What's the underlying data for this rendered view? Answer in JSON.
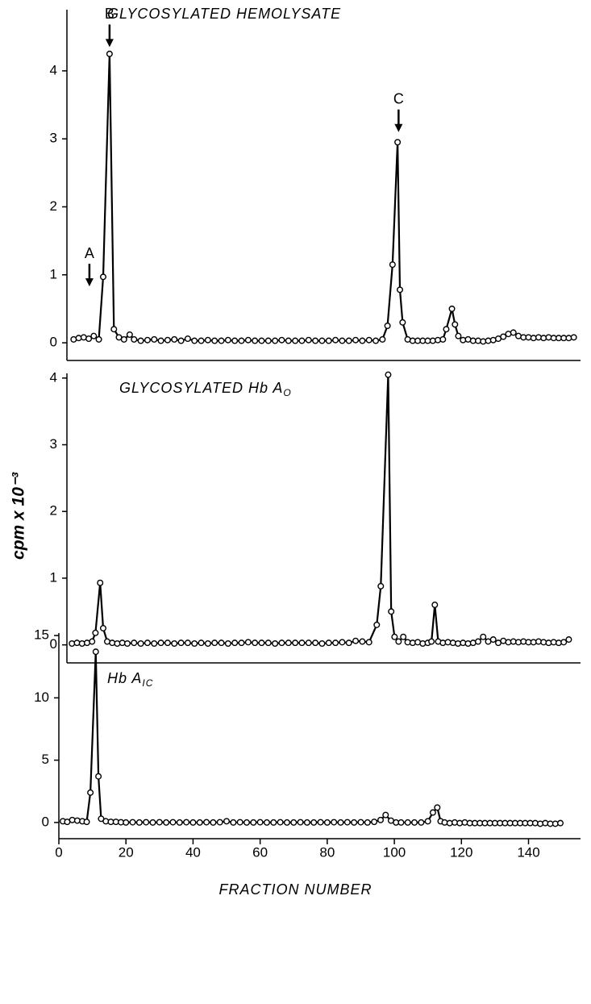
{
  "chart_data": [
    {
      "type": "line",
      "title": "GLYCOSYLATED HEMOLYSATE",
      "xlim": [
        0,
        153
      ],
      "ylim": [
        -0.26,
        4.9
      ],
      "yticks": [
        0,
        1,
        2,
        3,
        4
      ],
      "grid": false,
      "color": "#000000",
      "x": [
        2,
        3.5,
        5,
        6.5,
        8,
        9.5,
        10.8,
        12.7,
        14,
        15.5,
        17,
        18.7,
        20,
        22,
        24,
        26,
        28,
        30,
        32,
        34,
        36,
        38,
        40,
        42,
        44,
        46,
        48,
        50,
        52,
        54,
        56,
        58,
        60,
        62,
        64,
        66,
        68,
        70,
        72,
        74,
        76,
        78,
        80,
        82,
        84,
        86,
        88,
        90,
        92,
        94,
        95.5,
        97,
        98.5,
        99.2,
        100,
        101.5,
        103,
        104.5,
        106,
        107.5,
        109,
        110.5,
        112,
        113,
        114.7,
        115.6,
        116.6,
        118,
        119.5,
        121,
        122.5,
        124,
        125.5,
        127,
        128.5,
        130,
        131.5,
        133,
        134.5,
        136,
        137.5,
        139,
        140.5,
        142,
        143.5,
        145,
        146.5,
        148,
        149.5,
        151
      ],
      "values": [
        0.05,
        0.07,
        0.08,
        0.06,
        0.1,
        0.05,
        0.97,
        4.25,
        0.2,
        0.08,
        0.05,
        0.12,
        0.05,
        0.03,
        0.04,
        0.05,
        0.03,
        0.04,
        0.05,
        0.03,
        0.06,
        0.03,
        0.03,
        0.04,
        0.03,
        0.03,
        0.04,
        0.03,
        0.03,
        0.04,
        0.03,
        0.03,
        0.03,
        0.03,
        0.04,
        0.03,
        0.03,
        0.03,
        0.04,
        0.03,
        0.03,
        0.03,
        0.04,
        0.03,
        0.03,
        0.04,
        0.03,
        0.04,
        0.03,
        0.05,
        0.25,
        1.15,
        2.95,
        0.78,
        0.3,
        0.05,
        0.03,
        0.03,
        0.03,
        0.03,
        0.03,
        0.04,
        0.05,
        0.2,
        0.5,
        0.27,
        0.1,
        0.04,
        0.05,
        0.03,
        0.03,
        0.02,
        0.03,
        0.04,
        0.06,
        0.09,
        0.13,
        0.15,
        0.1,
        0.08,
        0.08,
        0.07,
        0.08,
        0.07,
        0.08,
        0.07,
        0.07,
        0.07,
        0.07,
        0.08
      ],
      "annotations": [
        {
          "text": "A",
          "x": 6.7,
          "y": 0.83
        },
        {
          "text": "B",
          "x": 12.7,
          "y": 4.35
        },
        {
          "text": "C",
          "x": 98.8,
          "y": 3.1
        }
      ]
    },
    {
      "type": "line",
      "title": "GLYCOSYLATED Hb A",
      "title_subscript": "O",
      "ylabel": "cpm x 10⁻³",
      "xlim": [
        0,
        153
      ],
      "ylim": [
        -0.27,
        4.07
      ],
      "yticks": [
        0,
        1,
        2,
        3,
        4
      ],
      "grid": false,
      "color": "#000000",
      "x": [
        1.5,
        3,
        4.5,
        6,
        7.5,
        8.5,
        9.9,
        10.8,
        12,
        13.5,
        15,
        16.5,
        18,
        20,
        22,
        24,
        26,
        28,
        30,
        32,
        34,
        36,
        38,
        40,
        42,
        44,
        46,
        48,
        50,
        52,
        54,
        56,
        58,
        60,
        62,
        64,
        66,
        68,
        70,
        72,
        74,
        76,
        78,
        80,
        82,
        84,
        86,
        88,
        90,
        92.3,
        93.5,
        95.7,
        96.6,
        97.6,
        98.8,
        100.2,
        101.5,
        103,
        104.5,
        106,
        107.5,
        108.6,
        109.6,
        110.6,
        112,
        113.5,
        115,
        116.5,
        118,
        119.5,
        121,
        122.5,
        124,
        125.5,
        127,
        128.5,
        130,
        131.5,
        133,
        134.5,
        136,
        137.5,
        139,
        140.5,
        142,
        143.5,
        145,
        146.5,
        148,
        149.5
      ],
      "values": [
        0.02,
        0.03,
        0.02,
        0.03,
        0.05,
        0.18,
        0.93,
        0.25,
        0.05,
        0.03,
        0.02,
        0.03,
        0.02,
        0.03,
        0.02,
        0.03,
        0.02,
        0.03,
        0.03,
        0.02,
        0.03,
        0.03,
        0.02,
        0.03,
        0.02,
        0.03,
        0.03,
        0.02,
        0.03,
        0.03,
        0.04,
        0.03,
        0.03,
        0.03,
        0.02,
        0.03,
        0.03,
        0.03,
        0.03,
        0.03,
        0.03,
        0.02,
        0.03,
        0.03,
        0.04,
        0.03,
        0.06,
        0.05,
        0.04,
        0.3,
        0.88,
        4.05,
        0.5,
        0.12,
        0.05,
        0.12,
        0.04,
        0.03,
        0.04,
        0.02,
        0.03,
        0.05,
        0.6,
        0.05,
        0.03,
        0.04,
        0.03,
        0.02,
        0.03,
        0.02,
        0.03,
        0.05,
        0.12,
        0.05,
        0.08,
        0.03,
        0.06,
        0.04,
        0.05,
        0.04,
        0.05,
        0.04,
        0.04,
        0.05,
        0.04,
        0.03,
        0.04,
        0.03,
        0.04,
        0.08
      ]
    },
    {
      "type": "line",
      "title": "Hb A",
      "title_subscript": "IC",
      "xlabel": "FRACTION NUMBER",
      "xlim": [
        0,
        155.5
      ],
      "ylim": [
        -1.3,
        15.2
      ],
      "yticks": [
        0,
        5,
        10,
        15
      ],
      "xticks": [
        0,
        20,
        40,
        60,
        80,
        100,
        120,
        140
      ],
      "grid": false,
      "color": "#000000",
      "x": [
        1.2,
        2.5,
        4,
        5.5,
        7,
        8.3,
        9.4,
        11,
        11.8,
        12.6,
        14,
        15.5,
        17,
        18.5,
        20,
        22,
        24,
        26,
        28,
        30,
        32,
        34,
        36,
        38,
        40,
        42,
        44,
        46,
        48,
        50,
        52,
        54,
        56,
        58,
        60,
        62,
        64,
        66,
        68,
        70,
        72,
        74,
        76,
        78,
        80,
        82,
        84,
        86,
        88,
        90,
        92,
        94,
        95.9,
        97.4,
        99,
        100.5,
        102,
        104,
        106,
        108,
        110,
        111.5,
        112.8,
        113.8,
        115,
        116.5,
        118,
        119.5,
        121,
        122.5,
        124,
        125.5,
        127,
        128.5,
        130,
        131.5,
        133,
        134.5,
        136,
        137.5,
        139,
        140.5,
        142,
        143.5,
        145,
        146.5,
        148,
        149.5
      ],
      "values": [
        0.1,
        0.05,
        0.2,
        0.15,
        0.1,
        0.05,
        2.4,
        13.7,
        3.7,
        0.3,
        0.1,
        0.05,
        0.05,
        0.02,
        0,
        0.02,
        0,
        0.02,
        0,
        0.02,
        0,
        0.02,
        0,
        0.02,
        0,
        0,
        0.02,
        0,
        0.02,
        0.1,
        0,
        0.02,
        0,
        0,
        0.02,
        0,
        0,
        0.02,
        0,
        0,
        0.02,
        0,
        0,
        0.02,
        0,
        0.02,
        0,
        0.02,
        0,
        0.02,
        0,
        0.05,
        0.2,
        0.6,
        0.15,
        0,
        0,
        0,
        0,
        0,
        0.1,
        0.8,
        1.2,
        0.1,
        0,
        -0.05,
        0,
        -0.05,
        0,
        -0.05,
        -0.05,
        -0.05,
        -0.05,
        -0.05,
        -0.05,
        -0.05,
        -0.05,
        -0.05,
        -0.05,
        -0.05,
        -0.05,
        -0.05,
        -0.05,
        -0.1,
        -0.05,
        -0.1,
        -0.1,
        -0.05
      ]
    }
  ]
}
